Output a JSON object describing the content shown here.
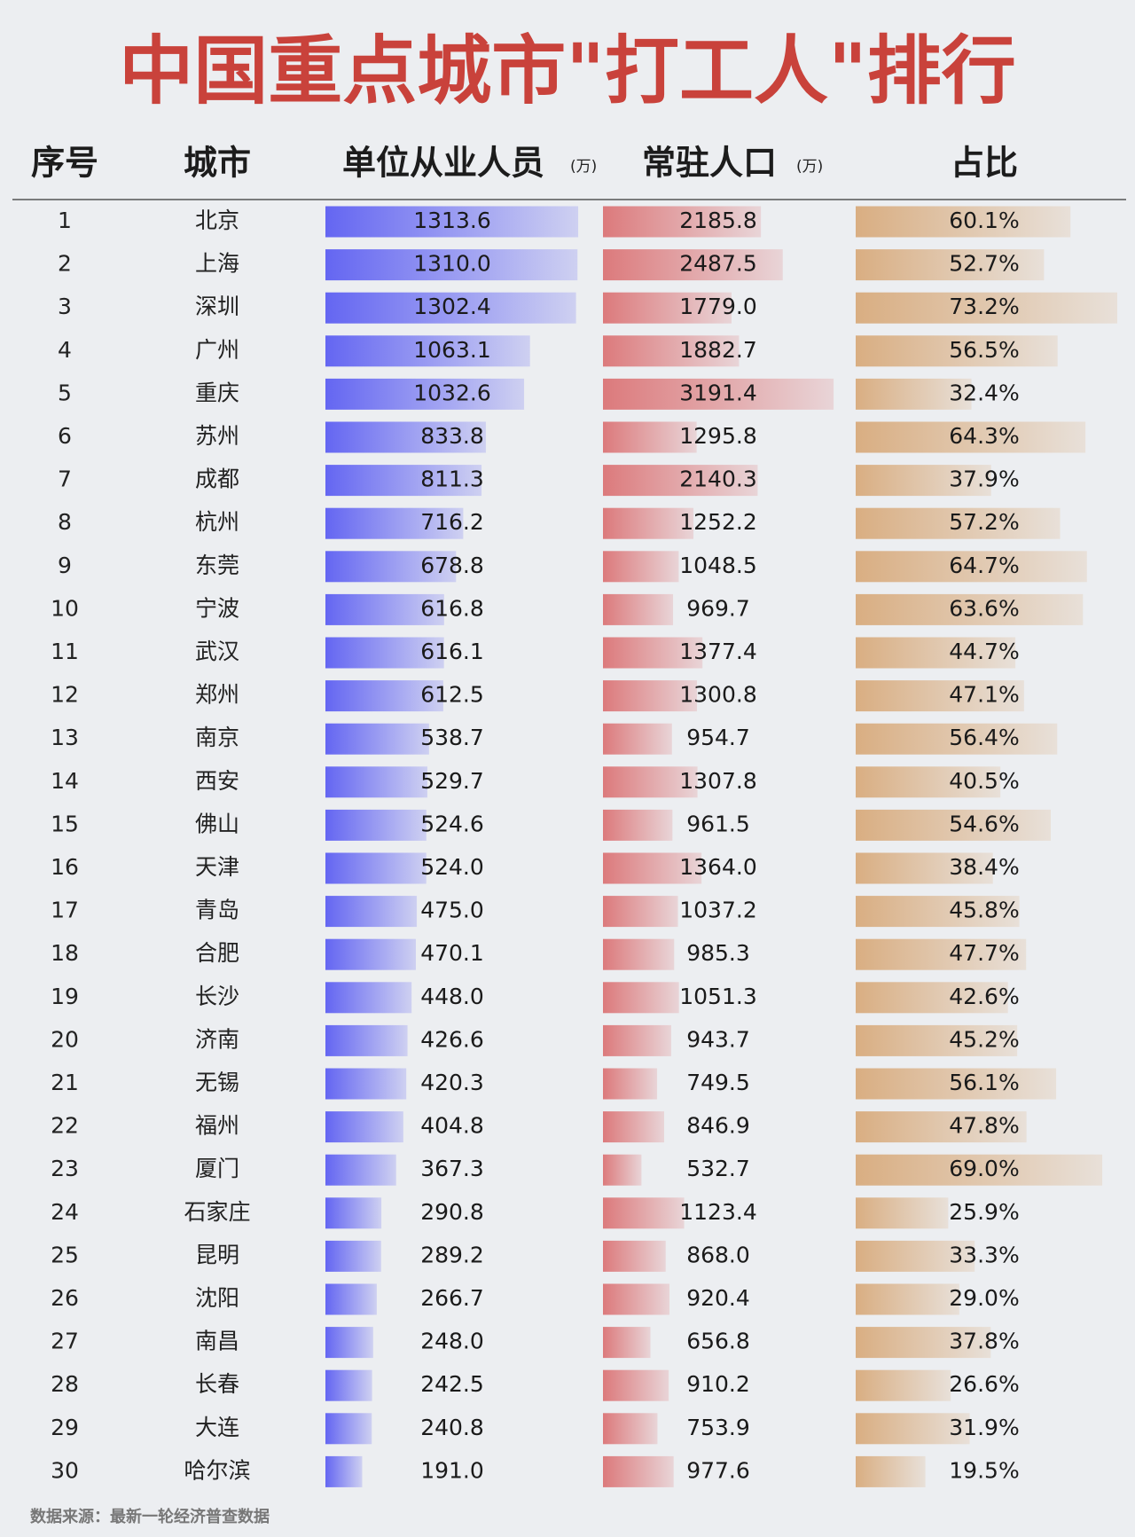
{
  "chart_data": {
    "type": "bar-table",
    "title": "中国重点城市\"打工人\"排行",
    "headers": [
      "序号",
      "城市",
      "单位从业人员",
      "常驻人口",
      "占比"
    ],
    "unit": "(万)",
    "ranks": [
      1,
      2,
      3,
      4,
      5,
      6,
      7,
      8,
      9,
      10,
      11,
      12,
      13,
      14,
      15,
      16,
      17,
      18,
      19,
      20,
      21,
      22,
      23,
      24,
      25,
      26,
      27,
      28,
      29,
      30
    ],
    "categories": [
      "北京",
      "上海",
      "深圳",
      "广州",
      "重庆",
      "苏州",
      "成都",
      "杭州",
      "东莞",
      "宁波",
      "武汉",
      "郑州",
      "南京",
      "西安",
      "佛山",
      "天津",
      "青岛",
      "合肥",
      "长沙",
      "济南",
      "无锡",
      "福州",
      "厦门",
      "石家庄",
      "昆明",
      "沈阳",
      "南昌",
      "长春",
      "大连",
      "哈尔滨"
    ],
    "series": [
      {
        "name": "单位从业人员",
        "color": "#6466f2",
        "values": [
          1313.6,
          1310.0,
          1302.4,
          1063.1,
          1032.6,
          833.8,
          811.3,
          716.2,
          678.8,
          616.8,
          616.1,
          612.5,
          538.7,
          529.7,
          524.6,
          524.0,
          475.0,
          470.1,
          448.0,
          426.6,
          420.3,
          404.8,
          367.3,
          290.8,
          289.2,
          266.7,
          248.0,
          242.5,
          240.8,
          191.0
        ],
        "value_labels": [
          "1313.6",
          "1310.0",
          "1302.4",
          "1063.1",
          "1032.6",
          "833.8",
          "811.3",
          "716.2",
          "678.8",
          "616.8",
          "616.1",
          "612.5",
          "538.7",
          "529.7",
          "524.6",
          "524.0",
          "475.0",
          "470.1",
          "448.0",
          "426.6",
          "420.3",
          "404.8",
          "367.3",
          "290.8",
          "289.2",
          "266.7",
          "248.0",
          "242.5",
          "240.8",
          "191.0"
        ]
      },
      {
        "name": "常驻人口",
        "color": "#dc7a7c",
        "values": [
          2185.8,
          2487.5,
          1779.0,
          1882.7,
          3191.4,
          1295.8,
          2140.3,
          1252.2,
          1048.5,
          969.7,
          1377.4,
          1300.8,
          954.7,
          1307.8,
          961.5,
          1364.0,
          1037.2,
          985.3,
          1051.3,
          943.7,
          749.5,
          846.9,
          532.7,
          1123.4,
          868.0,
          920.4,
          656.8,
          910.2,
          753.9,
          977.6
        ],
        "value_labels": [
          "2185.8",
          "2487.5",
          "1779.0",
          "1882.7",
          "3191.4",
          "1295.8",
          "2140.3",
          "1252.2",
          "1048.5",
          "969.7",
          "1377.4",
          "1300.8",
          "954.7",
          "1307.8",
          "961.5",
          "1364.0",
          "1037.2",
          "985.3",
          "1051.3",
          "943.7",
          "749.5",
          "846.9",
          "532.7",
          "1123.4",
          "868.0",
          "920.4",
          "656.8",
          "910.2",
          "753.9",
          "977.6"
        ]
      },
      {
        "name": "占比",
        "color": "#d9ae82",
        "values": [
          60.1,
          52.7,
          73.2,
          56.5,
          32.4,
          64.3,
          37.9,
          57.2,
          64.7,
          63.6,
          44.7,
          47.1,
          56.4,
          40.5,
          54.6,
          38.4,
          45.8,
          47.7,
          42.6,
          45.2,
          56.1,
          47.8,
          69.0,
          25.9,
          33.3,
          29.0,
          37.8,
          26.6,
          31.9,
          19.5
        ],
        "value_labels": [
          "60.1%",
          "52.7%",
          "73.2%",
          "56.5%",
          "32.4%",
          "64.3%",
          "37.9%",
          "57.2%",
          "64.7%",
          "63.6%",
          "44.7%",
          "47.1%",
          "56.4%",
          "40.5%",
          "54.6%",
          "38.4%",
          "45.8%",
          "47.7%",
          "42.6%",
          "45.2%",
          "56.1%",
          "47.8%",
          "69.0%",
          "25.9%",
          "33.3%",
          "29.0%",
          "37.8%",
          "26.6%",
          "31.9%",
          "19.5%"
        ]
      }
    ],
    "source": "数据来源：最新一轮经济普查数据"
  }
}
